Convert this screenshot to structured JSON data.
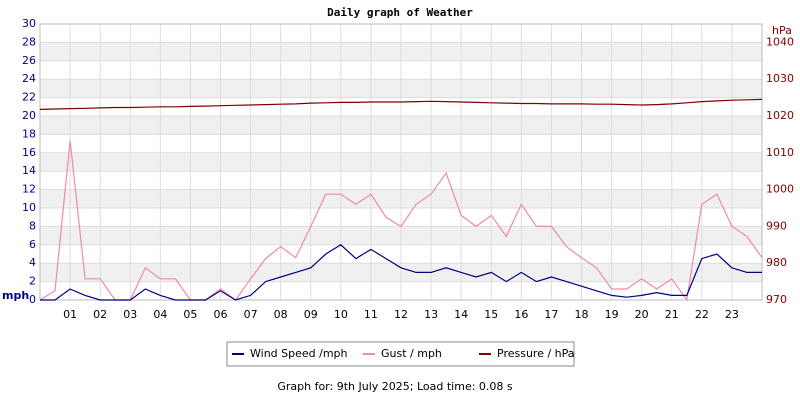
{
  "chart_data": {
    "type": "line",
    "title": "Daily graph of Weather",
    "ylabel": "mph",
    "y2label": "hPa",
    "footer": "Graph for: 9th July 2025; Load time: 0.08 s",
    "x": [
      0,
      0.5,
      1,
      1.5,
      2,
      2.5,
      3,
      3.5,
      4,
      4.5,
      5,
      5.5,
      6,
      6.5,
      7,
      7.5,
      8,
      8.5,
      9,
      9.5,
      10,
      10.5,
      11,
      11.5,
      12,
      12.5,
      13,
      13.5,
      14,
      14.5,
      15,
      15.5,
      16,
      16.5,
      17,
      17.5,
      18,
      18.5,
      19,
      19.5,
      20,
      20.5,
      21,
      21.5,
      22,
      22.5,
      23,
      23.5,
      24
    ],
    "series": [
      {
        "name": "Wind Speed /mph",
        "color": "#000080",
        "axis": "y",
        "values": [
          0,
          0,
          1.2,
          0.5,
          0,
          0,
          0,
          1.2,
          0.5,
          0,
          0,
          0,
          1,
          0,
          0.5,
          2,
          2.5,
          3,
          3.5,
          5,
          6,
          4.5,
          5.5,
          4.5,
          3.5,
          3,
          3,
          3.5,
          3,
          2.5,
          3,
          2,
          3,
          2,
          2.5,
          2,
          1.5,
          1,
          0.5,
          0.3,
          0.5,
          0.8,
          0.5,
          0.5,
          4.5,
          5,
          3.5,
          3,
          3
        ]
      },
      {
        "name": "Gust / mph",
        "color": "#f088b0",
        "axis": "y",
        "values": [
          0,
          1,
          17.3,
          2.3,
          2.3,
          0,
          0,
          3.5,
          2.3,
          2.3,
          0,
          0,
          1.2,
          0,
          2.3,
          4.5,
          5.8,
          4.6,
          8,
          11.5,
          11.5,
          10.4,
          11.5,
          9,
          8,
          10.4,
          11.5,
          13.8,
          9.2,
          8,
          9.2,
          6.9,
          10.4,
          8,
          8,
          5.8,
          4.6,
          3.5,
          1.2,
          1.2,
          2.3,
          1.2,
          2.3,
          0,
          10.4,
          11.5,
          8,
          6.9,
          4.6
        ]
      },
      {
        "name": "Pressure / hPa",
        "color": "#800000",
        "axis": "y2",
        "values": [
          1021.8,
          1021.9,
          1022,
          1022.1,
          1022.2,
          1022.3,
          1022.3,
          1022.4,
          1022.5,
          1022.5,
          1022.6,
          1022.7,
          1022.8,
          1022.9,
          1023,
          1023.1,
          1023.2,
          1023.3,
          1023.5,
          1023.6,
          1023.7,
          1023.7,
          1023.8,
          1023.8,
          1023.8,
          1023.9,
          1024,
          1023.9,
          1023.8,
          1023.7,
          1023.6,
          1023.5,
          1023.4,
          1023.4,
          1023.3,
          1023.3,
          1023.3,
          1023.2,
          1023.2,
          1023.1,
          1023,
          1023.1,
          1023.3,
          1023.6,
          1023.9,
          1024.1,
          1024.3,
          1024.4,
          1024.5
        ]
      }
    ],
    "xlim": [
      0,
      24
    ],
    "xticks": [
      {
        "value": 1,
        "label": "01"
      },
      {
        "value": 2,
        "label": "02"
      },
      {
        "value": 3,
        "label": "03"
      },
      {
        "value": 4,
        "label": "04"
      },
      {
        "value": 5,
        "label": "05"
      },
      {
        "value": 6,
        "label": "06"
      },
      {
        "value": 7,
        "label": "07"
      },
      {
        "value": 8,
        "label": "08"
      },
      {
        "value": 9,
        "label": "09"
      },
      {
        "value": 10,
        "label": "10"
      },
      {
        "value": 11,
        "label": "11"
      },
      {
        "value": 12,
        "label": "12"
      },
      {
        "value": 13,
        "label": "13"
      },
      {
        "value": 14,
        "label": "14"
      },
      {
        "value": 15,
        "label": "15"
      },
      {
        "value": 16,
        "label": "16"
      },
      {
        "value": 17,
        "label": "17"
      },
      {
        "value": 18,
        "label": "18"
      },
      {
        "value": 19,
        "label": "19"
      },
      {
        "value": 20,
        "label": "20"
      },
      {
        "value": 21,
        "label": "21"
      },
      {
        "value": 22,
        "label": "22"
      },
      {
        "value": 23,
        "label": "23"
      }
    ],
    "ylim": [
      0,
      30
    ],
    "yticks": [
      0,
      2,
      4,
      6,
      8,
      10,
      12,
      14,
      16,
      18,
      20,
      22,
      24,
      26,
      28,
      30
    ],
    "y2lim": [
      970,
      1045
    ],
    "y2ticks": [
      970,
      980,
      990,
      1000,
      1010,
      1020,
      1030,
      1040
    ],
    "grid": true,
    "bands": true,
    "legend": "bottom"
  }
}
